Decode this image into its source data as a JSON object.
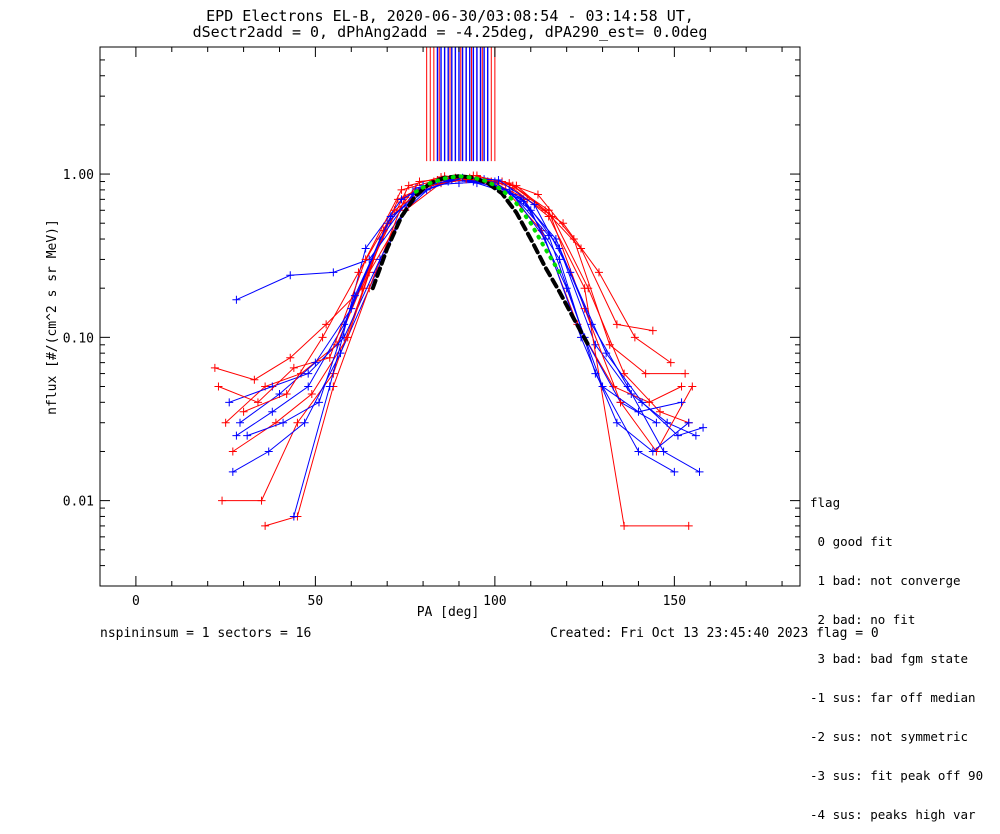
{
  "title_line1": "EPD Electrons EL-B, 2020-06-30/03:08:54 - 03:14:58 UT,",
  "title_line2": "dSectr2add = 0, dPhAng2add = -4.25deg, dPA290_est=   0.0deg",
  "footer_left": "nspininsum =  1  sectors = 16",
  "footer_right": "Created: Fri Oct 13 23:45:40 2023   flag = 0",
  "legend": {
    "title": "flag",
    "items": [
      " 0 good fit",
      " 1 bad: not converge",
      " 2 bad: no fit",
      " 3 bad: bad fgm state",
      "-1 sus: far off median",
      "-2 sus: not symmetric",
      "-3 sus: fit peak off 90",
      "-4 sus: peaks high var"
    ]
  },
  "colors": {
    "red": "#ff0000",
    "blue": "#0000ff",
    "fit_black": "#000000",
    "fit_green": "#00dd00"
  },
  "chart_data": {
    "type": "line",
    "xlabel": "PA [deg]",
    "ylabel": "nflux [#/(cm^2 s sr MeV)]",
    "xlim": [
      -10,
      185
    ],
    "ylim": [
      0.003,
      6
    ],
    "yscale": "log",
    "xticks": [
      0,
      50,
      100,
      150
    ],
    "yticks": [
      {
        "value": 0.01,
        "label": "0.01"
      },
      {
        "value": 0.1,
        "label": "0.10"
      },
      {
        "value": 1.0,
        "label": "1.00"
      }
    ],
    "series": [
      {
        "color": "red",
        "x": [
          25,
          36,
          46,
          56,
          66,
          76,
          86,
          96,
          106,
          116,
          126,
          136,
          146,
          154
        ],
        "y": [
          0.03,
          0.05,
          0.06,
          0.09,
          0.3,
          0.85,
          0.97,
          0.92,
          0.85,
          0.55,
          0.2,
          0.06,
          0.035,
          0.03
        ]
      },
      {
        "color": "blue",
        "x": [
          28,
          38,
          48,
          58,
          68,
          78,
          88,
          98,
          108,
          118,
          128,
          138,
          148,
          156
        ],
        "y": [
          0.025,
          0.035,
          0.05,
          0.12,
          0.4,
          0.8,
          0.93,
          0.9,
          0.7,
          0.35,
          0.09,
          0.045,
          0.03,
          0.025
        ]
      },
      {
        "color": "red",
        "x": [
          22,
          33,
          43,
          53,
          63,
          73,
          83,
          93,
          103,
          113,
          123,
          133,
          143,
          152
        ],
        "y": [
          0.065,
          0.055,
          0.075,
          0.12,
          0.2,
          0.7,
          0.9,
          0.95,
          0.8,
          0.45,
          0.12,
          0.05,
          0.04,
          0.05
        ]
      },
      {
        "color": "blue",
        "x": [
          28,
          43,
          55,
          65,
          75,
          85,
          95,
          105,
          115,
          125,
          135,
          145
        ],
        "y": [
          0.17,
          0.24,
          0.25,
          0.3,
          0.6,
          0.95,
          0.88,
          0.75,
          0.42,
          0.1,
          0.04,
          0.03
        ]
      },
      {
        "color": "red",
        "x": [
          24,
          35,
          45,
          55,
          65,
          75,
          85,
          95,
          105,
          115,
          125,
          135,
          145,
          155
        ],
        "y": [
          0.01,
          0.01,
          0.03,
          0.06,
          0.25,
          0.6,
          0.88,
          0.95,
          0.85,
          0.6,
          0.15,
          0.04,
          0.02,
          0.05
        ]
      },
      {
        "color": "blue",
        "x": [
          27,
          37,
          47,
          57,
          67,
          77,
          87,
          97,
          107,
          117,
          127,
          137,
          147,
          157
        ],
        "y": [
          0.015,
          0.02,
          0.03,
          0.08,
          0.25,
          0.75,
          0.9,
          0.93,
          0.72,
          0.4,
          0.12,
          0.05,
          0.02,
          0.015
        ]
      },
      {
        "color": "red",
        "x": [
          36,
          45,
          55,
          65,
          75,
          85,
          95,
          105,
          115,
          125,
          136,
          154
        ],
        "y": [
          0.007,
          0.008,
          0.05,
          0.2,
          0.72,
          0.96,
          0.98,
          0.82,
          0.55,
          0.2,
          0.007,
          0.007
        ]
      },
      {
        "color": "blue",
        "x": [
          26,
          38,
          48,
          58,
          68,
          78,
          88,
          98,
          108,
          118,
          128,
          140,
          150
        ],
        "y": [
          0.04,
          0.05,
          0.06,
          0.1,
          0.3,
          0.82,
          0.92,
          0.9,
          0.68,
          0.3,
          0.06,
          0.02,
          0.015
        ]
      },
      {
        "color": "red",
        "x": [
          27,
          39,
          49,
          59,
          69,
          79,
          89,
          99,
          109,
          119,
          129,
          139,
          149
        ],
        "y": [
          0.02,
          0.03,
          0.045,
          0.1,
          0.45,
          0.9,
          0.95,
          0.9,
          0.7,
          0.5,
          0.25,
          0.1,
          0.07
        ]
      },
      {
        "color": "blue",
        "x": [
          44,
          54,
          64,
          74,
          84,
          94,
          104,
          114,
          124,
          134,
          144,
          154
        ],
        "y": [
          0.008,
          0.05,
          0.35,
          0.7,
          0.92,
          0.9,
          0.8,
          0.4,
          0.1,
          0.03,
          0.02,
          0.03
        ]
      },
      {
        "color": "red",
        "x": [
          23,
          34,
          44,
          54,
          64,
          74,
          84,
          94,
          104,
          114,
          124,
          134,
          144
        ],
        "y": [
          0.05,
          0.04,
          0.065,
          0.075,
          0.3,
          0.8,
          0.92,
          0.98,
          0.88,
          0.6,
          0.35,
          0.12,
          0.11
        ]
      },
      {
        "color": "blue",
        "x": [
          29,
          40,
          50,
          60,
          70,
          80,
          90,
          100,
          110,
          120,
          130,
          140,
          152
        ],
        "y": [
          0.03,
          0.045,
          0.07,
          0.15,
          0.5,
          0.85,
          0.88,
          0.9,
          0.6,
          0.2,
          0.05,
          0.035,
          0.04
        ]
      },
      {
        "color": "red",
        "x": [
          30,
          42,
          52,
          62,
          72,
          82,
          92,
          102,
          112,
          122,
          132,
          142,
          153
        ],
        "y": [
          0.035,
          0.045,
          0.1,
          0.25,
          0.6,
          0.85,
          0.93,
          0.9,
          0.75,
          0.4,
          0.09,
          0.06,
          0.06
        ]
      },
      {
        "color": "blue",
        "x": [
          31,
          41,
          51,
          61,
          71,
          81,
          91,
          101,
          111,
          121,
          131,
          141,
          151,
          158
        ],
        "y": [
          0.025,
          0.03,
          0.04,
          0.18,
          0.55,
          0.8,
          0.95,
          0.92,
          0.65,
          0.25,
          0.08,
          0.04,
          0.025,
          0.028
        ]
      }
    ],
    "fit_curves": [
      {
        "color": "fit_black",
        "style": "dashed",
        "x": [
          66,
          70,
          74,
          78,
          82,
          86,
          90,
          94,
          98,
          102,
          106,
          110,
          114,
          118,
          122,
          126
        ],
        "y": [
          0.2,
          0.35,
          0.55,
          0.74,
          0.88,
          0.95,
          0.97,
          0.95,
          0.88,
          0.76,
          0.58,
          0.4,
          0.27,
          0.19,
          0.13,
          0.09
        ]
      },
      {
        "color": "fit_green",
        "style": "dotted",
        "x": [
          78,
          82,
          86,
          90,
          94,
          98,
          102,
          106,
          110,
          114,
          118
        ],
        "y": [
          0.78,
          0.88,
          0.94,
          0.97,
          0.95,
          0.9,
          0.8,
          0.66,
          0.5,
          0.35,
          0.25
        ]
      }
    ],
    "vertical_lines": {
      "ymin": 1.2,
      "ymax": 6,
      "red_x": [
        81,
        82,
        83,
        84.5,
        86,
        87.5,
        89,
        90.5,
        92,
        93.5,
        95,
        96.5,
        98,
        99,
        100
      ],
      "blue_x": [
        84,
        85,
        86,
        87,
        88,
        89,
        90,
        91,
        92,
        93,
        94,
        95,
        96,
        97,
        98
      ]
    }
  }
}
